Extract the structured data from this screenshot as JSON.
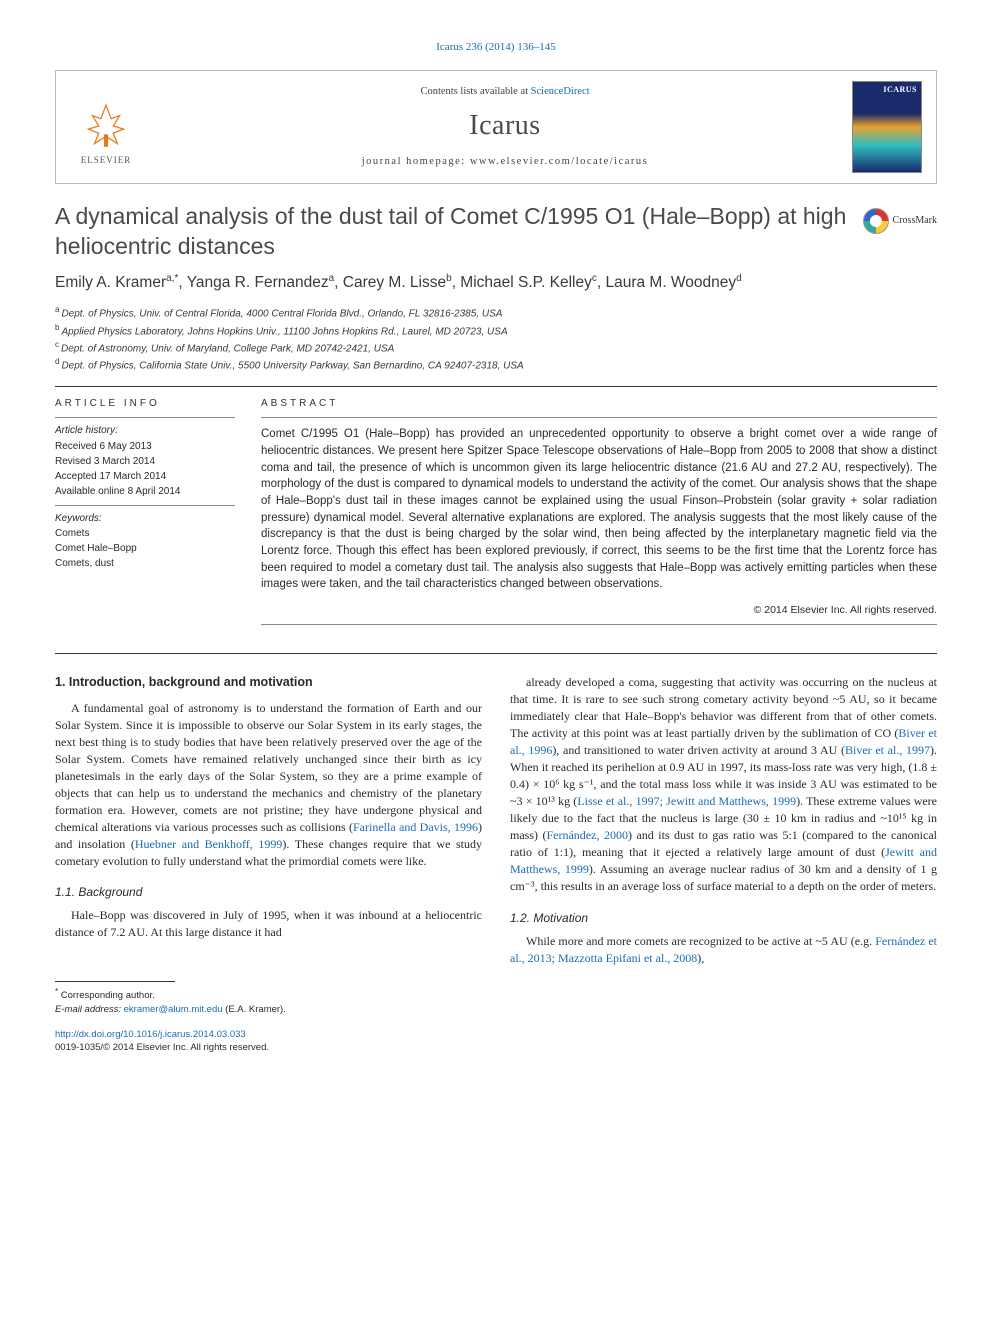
{
  "top_citation": "Icarus 236 (2014) 136–145",
  "header": {
    "contents_prefix": "Contents lists available at ",
    "contents_link": "ScienceDirect",
    "journal": "Icarus",
    "homepage_prefix": "journal homepage: ",
    "homepage_url": "www.elsevier.com/locate/icarus",
    "publisher": "ELSEVIER",
    "cover_label": "ICARUS"
  },
  "crossmark": "CrossMark",
  "title": "A dynamical analysis of the dust tail of Comet C/1995 O1 (Hale–Bopp) at high heliocentric distances",
  "authors_html": "Emily A. Kramer<span class='sup'>a,</span><span class='sup star'>*</span>, Yanga R. Fernandez<span class='sup'>a</span>, Carey M. Lisse<span class='sup'>b</span>, Michael S.P. Kelley<span class='sup'>c</span>, Laura M. Woodney<span class='sup'>d</span>",
  "affiliations": [
    {
      "sup": "a",
      "text": "Dept. of Physics, Univ. of Central Florida, 4000 Central Florida Blvd., Orlando, FL 32816-2385, USA"
    },
    {
      "sup": "b",
      "text": "Applied Physics Laboratory, Johns Hopkins Univ., 11100 Johns Hopkins Rd., Laurel, MD 20723, USA"
    },
    {
      "sup": "c",
      "text": "Dept. of Astronomy, Univ. of Maryland, College Park, MD 20742-2421, USA"
    },
    {
      "sup": "d",
      "text": "Dept. of Physics, California State Univ., 5500 University Parkway, San Bernardino, CA 92407-2318, USA"
    }
  ],
  "article_info": {
    "head": "ARTICLE INFO",
    "history_label": "Article history:",
    "history": [
      "Received 6 May 2013",
      "Revised 3 March 2014",
      "Accepted 17 March 2014",
      "Available online 8 April 2014"
    ],
    "keywords_label": "Keywords:",
    "keywords": [
      "Comets",
      "Comet Hale–Bopp",
      "Comets, dust"
    ]
  },
  "abstract": {
    "head": "ABSTRACT",
    "text": "Comet C/1995 O1 (Hale–Bopp) has provided an unprecedented opportunity to observe a bright comet over a wide range of heliocentric distances. We present here Spitzer Space Telescope observations of Hale–Bopp from 2005 to 2008 that show a distinct coma and tail, the presence of which is uncommon given its large heliocentric distance (21.6 AU and 27.2 AU, respectively). The morphology of the dust is compared to dynamical models to understand the activity of the comet. Our analysis shows that the shape of Hale–Bopp's dust tail in these images cannot be explained using the usual Finson–Probstein (solar gravity + solar radiation pressure) dynamical model. Several alternative explanations are explored. The analysis suggests that the most likely cause of the discrepancy is that the dust is being charged by the solar wind, then being affected by the interplanetary magnetic field via the Lorentz force. Though this effect has been explored previously, if correct, this seems to be the first time that the Lorentz force has been required to model a cometary dust tail. The analysis also suggests that Hale–Bopp was actively emitting particles when these images were taken, and the tail characteristics changed between observations.",
    "copyright": "© 2014 Elsevier Inc. All rights reserved."
  },
  "body": {
    "s1_head": "1. Introduction, background and motivation",
    "s1_p1a": "A fundamental goal of astronomy is to understand the formation of Earth and our Solar System. Since it is impossible to observe our Solar System in its early stages, the next best thing is to study bodies that have been relatively preserved over the age of the Solar System. Comets have remained relatively unchanged since their birth as icy planetesimals in the early days of the Solar System, so they are a prime example of objects that can help us to understand the mechanics and chemistry of the planetary formation era. However, comets are not pristine; they have undergone physical and chemical alterations via various processes such as collisions (",
    "s1_ref1": "Farinella and Davis, 1996",
    "s1_p1b": ") and insolation (",
    "s1_ref2": "Huebner and Benkhoff, 1999",
    "s1_p1c": "). These changes require that we study cometary evolution to fully understand what the primordial comets were like.",
    "s11_head": "1.1. Background",
    "s11_p1": "Hale–Bopp was discovered in July of 1995, when it was inbound at a heliocentric distance of 7.2 AU. At this large distance it had",
    "col2_p1a": "already developed a coma, suggesting that activity was occurring on the nucleus at that time. It is rare to see such strong cometary activity beyond ~5 AU, so it became immediately clear that Hale–Bopp's behavior was different from that of other comets. The activity at this point was at least partially driven by the sublimation of CO (",
    "col2_ref1": "Biver et al., 1996",
    "col2_p1b": "), and transitioned to water driven activity at around 3 AU (",
    "col2_ref2": "Biver et al., 1997",
    "col2_p1c": "). When it reached its perihelion at 0.9 AU in 1997, its mass-loss rate was very high, (1.8 ± 0.4) × 10⁶ kg s⁻¹, and the total mass loss while it was inside 3 AU was estimated to be ~3 × 10¹³ kg (",
    "col2_ref3": "Lisse et al., 1997; Jewitt and Matthews, 1999",
    "col2_p1d": "). These extreme values were likely due to the fact that the nucleus is large (30 ± 10 km in radius and ~10¹⁵ kg in mass) (",
    "col2_ref4": "Fernández, 2000",
    "col2_p1e": ") and its dust to gas ratio was 5:1 (compared to the canonical ratio of 1:1), meaning that it ejected a relatively large amount of dust (",
    "col2_ref5": "Jewitt and Matthews, 1999",
    "col2_p1f": "). Assuming an average nuclear radius of 30 km and a density of 1 g cm⁻³, this results in an average loss of surface material to a depth on the order of meters.",
    "s12_head": "1.2. Motivation",
    "s12_p1a": "While more and more comets are recognized to be active at ~5 AU (e.g. ",
    "s12_ref1": "Fernández et al., 2013; Mazzotta Epifani et al., 2008",
    "s12_p1b": "),"
  },
  "footnotes": {
    "corr_label": "Corresponding author.",
    "email_label": "E-mail address:",
    "email": "ekramer@alum.mit.edu",
    "email_who": "(E.A. Kramer)."
  },
  "doi": {
    "url_label": "http://dx.doi.org/10.1016/j.icarus.2014.03.033",
    "issn_line": "0019-1035/© 2014 Elsevier Inc. All rights reserved."
  }
}
